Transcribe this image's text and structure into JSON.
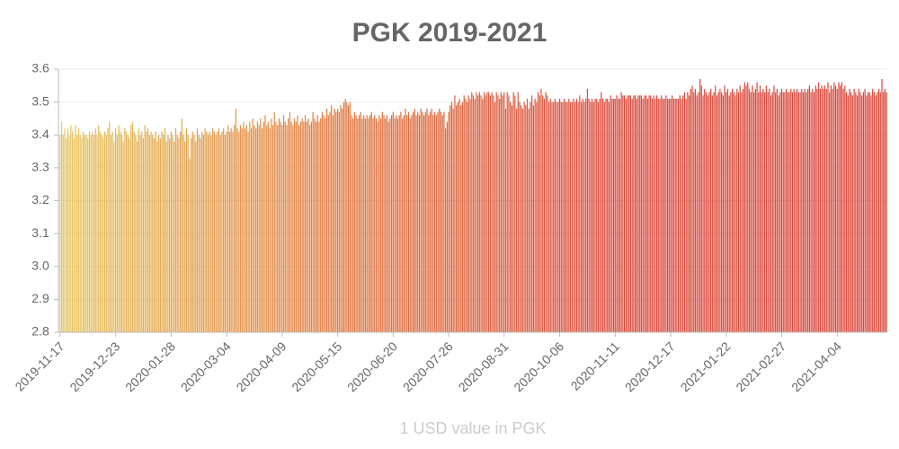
{
  "chart_data": {
    "type": "bar",
    "title": "PGK 2019-2021",
    "x_label": "1 USD value in PGK",
    "categories": [
      "2019-11-17",
      null,
      null,
      null,
      null,
      null,
      null,
      null,
      null,
      null,
      null,
      null,
      null,
      null,
      null,
      null,
      null,
      null,
      null,
      null,
      null,
      null,
      null,
      null,
      null,
      null,
      null,
      null,
      null,
      null,
      null,
      null,
      null,
      null,
      null,
      null,
      "2019-12-23",
      null,
      null,
      null,
      null,
      null,
      null,
      null,
      null,
      null,
      null,
      null,
      null,
      null,
      null,
      null,
      null,
      null,
      null,
      null,
      null,
      null,
      null,
      null,
      null,
      null,
      null,
      null,
      null,
      null,
      null,
      null,
      null,
      null,
      null,
      null,
      "2020-01-28",
      null,
      null,
      null,
      null,
      null,
      null,
      null,
      null,
      null,
      null,
      null,
      null,
      null,
      null,
      null,
      null,
      null,
      null,
      null,
      null,
      null,
      null,
      null,
      null,
      null,
      null,
      null,
      null,
      null,
      null,
      null,
      null,
      null,
      null,
      null,
      "2020-03-04",
      null,
      null,
      null,
      null,
      null,
      null,
      null,
      null,
      null,
      null,
      null,
      null,
      null,
      null,
      null,
      null,
      null,
      null,
      null,
      null,
      null,
      null,
      null,
      null,
      null,
      null,
      null,
      null,
      null,
      null,
      null,
      null,
      null,
      null,
      null,
      "2020-04-09",
      null,
      null,
      null,
      null,
      null,
      null,
      null,
      null,
      null,
      null,
      null,
      null,
      null,
      null,
      null,
      null,
      null,
      null,
      null,
      null,
      null,
      null,
      null,
      null,
      null,
      null,
      null,
      null,
      null,
      null,
      null,
      null,
      null,
      null,
      null,
      "2020-05-15",
      null,
      null,
      null,
      null,
      null,
      null,
      null,
      null,
      null,
      null,
      null,
      null,
      null,
      null,
      null,
      null,
      null,
      null,
      null,
      null,
      null,
      null,
      null,
      null,
      null,
      null,
      null,
      null,
      null,
      null,
      null,
      null,
      null,
      null,
      null,
      "2020-06-20",
      null,
      null,
      null,
      null,
      null,
      null,
      null,
      null,
      null,
      null,
      null,
      null,
      null,
      null,
      null,
      null,
      null,
      null,
      null,
      null,
      null,
      null,
      null,
      null,
      null,
      null,
      null,
      null,
      null,
      null,
      null,
      null,
      null,
      null,
      null,
      "2020-07-26",
      null,
      null,
      null,
      null,
      null,
      null,
      null,
      null,
      null,
      null,
      null,
      null,
      null,
      null,
      null,
      null,
      null,
      null,
      null,
      null,
      null,
      null,
      null,
      null,
      null,
      null,
      null,
      null,
      null,
      null,
      null,
      null,
      null,
      null,
      null,
      "2020-08-31",
      null,
      null,
      null,
      null,
      null,
      null,
      null,
      null,
      null,
      null,
      null,
      null,
      null,
      null,
      null,
      null,
      null,
      null,
      null,
      null,
      null,
      null,
      null,
      null,
      null,
      null,
      null,
      null,
      null,
      null,
      null,
      null,
      null,
      null,
      null,
      "2020-10-06",
      null,
      null,
      null,
      null,
      null,
      null,
      null,
      null,
      null,
      null,
      null,
      null,
      null,
      null,
      null,
      null,
      null,
      null,
      null,
      null,
      null,
      null,
      null,
      null,
      null,
      null,
      null,
      null,
      null,
      null,
      null,
      null,
      null,
      null,
      null,
      "2020-11-11",
      null,
      null,
      null,
      null,
      null,
      null,
      null,
      null,
      null,
      null,
      null,
      null,
      null,
      null,
      null,
      null,
      null,
      null,
      null,
      null,
      null,
      null,
      null,
      null,
      null,
      null,
      null,
      null,
      null,
      null,
      null,
      null,
      null,
      null,
      null,
      "2020-12-17",
      null,
      null,
      null,
      null,
      null,
      null,
      null,
      null,
      null,
      null,
      null,
      null,
      null,
      null,
      null,
      null,
      null,
      null,
      null,
      null,
      null,
      null,
      null,
      null,
      null,
      null,
      null,
      null,
      null,
      null,
      null,
      null,
      null,
      null,
      null,
      "2021-01-22",
      null,
      null,
      null,
      null,
      null,
      null,
      null,
      null,
      null,
      null,
      null,
      null,
      null,
      null,
      null,
      null,
      null,
      null,
      null,
      null,
      null,
      null,
      null,
      null,
      null,
      null,
      null,
      null,
      null,
      null,
      null,
      null,
      null,
      null,
      null,
      "2021-02-27",
      null,
      null,
      null,
      null,
      null,
      null,
      null,
      null,
      null,
      null,
      null,
      null,
      null,
      null,
      null,
      null,
      null,
      null,
      null,
      null,
      null,
      null,
      null,
      null,
      null,
      null,
      null,
      null,
      null,
      null,
      null,
      null,
      null,
      null,
      null,
      "2021-04-04",
      null,
      null,
      null,
      null,
      null,
      null,
      null,
      null,
      null,
      null,
      null,
      null,
      null,
      null,
      null,
      null,
      null,
      null,
      null,
      null,
      null,
      null,
      null,
      null,
      null,
      null,
      null,
      null,
      null,
      null,
      null,
      null
    ],
    "values": [
      3.4,
      3.44,
      3.4,
      3.42,
      3.39,
      3.42,
      3.4,
      3.43,
      3.41,
      3.39,
      3.43,
      3.4,
      3.42,
      3.4,
      3.39,
      3.41,
      3.4,
      3.4,
      3.39,
      3.41,
      3.4,
      3.41,
      3.4,
      3.42,
      3.4,
      3.43,
      3.41,
      3.4,
      3.39,
      3.41,
      3.4,
      3.42,
      3.44,
      3.4,
      3.41,
      3.38,
      3.42,
      3.4,
      3.43,
      3.41,
      3.4,
      3.38,
      3.42,
      3.41,
      3.4,
      3.39,
      3.43,
      3.44,
      3.41,
      3.4,
      3.38,
      3.42,
      3.4,
      3.41,
      3.39,
      3.43,
      3.41,
      3.42,
      3.4,
      3.41,
      3.4,
      3.39,
      3.41,
      3.38,
      3.4,
      3.39,
      3.41,
      3.4,
      3.42,
      3.38,
      3.4,
      3.39,
      3.41,
      3.4,
      3.38,
      3.42,
      3.4,
      3.39,
      3.41,
      3.45,
      3.4,
      3.38,
      3.42,
      3.4,
      3.33,
      3.39,
      3.41,
      3.4,
      3.38,
      3.42,
      3.4,
      3.39,
      3.41,
      3.4,
      3.42,
      3.41,
      3.4,
      3.41,
      3.4,
      3.42,
      3.41,
      3.4,
      3.41,
      3.42,
      3.4,
      3.41,
      3.42,
      3.4,
      3.41,
      3.43,
      3.41,
      3.42,
      3.41,
      3.43,
      3.48,
      3.42,
      3.41,
      3.43,
      3.42,
      3.44,
      3.42,
      3.43,
      3.41,
      3.44,
      3.42,
      3.45,
      3.43,
      3.42,
      3.44,
      3.43,
      3.45,
      3.42,
      3.44,
      3.46,
      3.43,
      3.44,
      3.42,
      3.45,
      3.43,
      3.47,
      3.44,
      3.43,
      3.45,
      3.44,
      3.43,
      3.46,
      3.44,
      3.43,
      3.45,
      3.47,
      3.44,
      3.43,
      3.45,
      3.44,
      3.46,
      3.43,
      3.44,
      3.45,
      3.44,
      3.46,
      3.44,
      3.45,
      3.43,
      3.44,
      3.47,
      3.45,
      3.44,
      3.46,
      3.44,
      3.45,
      3.47,
      3.46,
      3.45,
      3.48,
      3.46,
      3.47,
      3.49,
      3.46,
      3.48,
      3.47,
      3.48,
      3.47,
      3.49,
      3.48,
      3.5,
      3.51,
      3.5,
      3.49,
      3.5,
      3.46,
      3.45,
      3.47,
      3.46,
      3.45,
      3.46,
      3.47,
      3.45,
      3.46,
      3.45,
      3.46,
      3.45,
      3.46,
      3.47,
      3.45,
      3.46,
      3.45,
      3.44,
      3.46,
      3.45,
      3.47,
      3.46,
      3.45,
      3.46,
      3.44,
      3.45,
      3.46,
      3.47,
      3.45,
      3.46,
      3.45,
      3.46,
      3.47,
      3.45,
      3.46,
      3.48,
      3.46,
      3.47,
      3.45,
      3.46,
      3.47,
      3.48,
      3.46,
      3.47,
      3.46,
      3.48,
      3.47,
      3.46,
      3.47,
      3.48,
      3.46,
      3.47,
      3.48,
      3.46,
      3.47,
      3.46,
      3.47,
      3.48,
      3.47,
      3.46,
      3.47,
      3.42,
      3.44,
      3.47,
      3.49,
      3.5,
      3.48,
      3.52,
      3.49,
      3.5,
      3.51,
      3.49,
      3.5,
      3.52,
      3.51,
      3.5,
      3.52,
      3.51,
      3.53,
      3.52,
      3.51,
      3.53,
      3.52,
      3.53,
      3.52,
      3.51,
      3.53,
      3.52,
      3.53,
      3.53,
      3.52,
      3.53,
      3.52,
      3.5,
      3.53,
      3.52,
      3.51,
      3.53,
      3.52,
      3.53,
      3.48,
      3.53,
      3.52,
      3.5,
      3.49,
      3.53,
      3.52,
      3.48,
      3.53,
      3.5,
      3.49,
      3.48,
      3.5,
      3.49,
      3.51,
      3.48,
      3.5,
      3.52,
      3.49,
      3.51,
      3.5,
      3.53,
      3.52,
      3.54,
      3.52,
      3.51,
      3.53,
      3.52,
      3.5,
      3.51,
      3.5,
      3.5,
      3.51,
      3.5,
      3.5,
      3.51,
      3.5,
      3.5,
      3.51,
      3.5,
      3.5,
      3.51,
      3.5,
      3.5,
      3.51,
      3.5,
      3.51,
      3.5,
      3.52,
      3.5,
      3.51,
      3.5,
      3.51,
      3.54,
      3.51,
      3.5,
      3.51,
      3.5,
      3.51,
      3.51,
      3.5,
      3.51,
      3.53,
      3.51,
      3.5,
      3.51,
      3.51,
      3.5,
      3.52,
      3.51,
      3.51,
      3.51,
      3.52,
      3.51,
      3.51,
      3.53,
      3.52,
      3.52,
      3.51,
      3.52,
      3.52,
      3.52,
      3.51,
      3.52,
      3.52,
      3.51,
      3.52,
      3.52,
      3.52,
      3.51,
      3.52,
      3.52,
      3.51,
      3.52,
      3.52,
      3.51,
      3.52,
      3.51,
      3.52,
      3.51,
      3.51,
      3.52,
      3.51,
      3.51,
      3.52,
      3.51,
      3.51,
      3.51,
      3.52,
      3.51,
      3.51,
      3.51,
      3.51,
      3.52,
      3.51,
      3.52,
      3.53,
      3.51,
      3.53,
      3.52,
      3.54,
      3.55,
      3.53,
      3.54,
      3.52,
      3.53,
      3.57,
      3.55,
      3.52,
      3.54,
      3.53,
      3.52,
      3.53,
      3.54,
      3.52,
      3.53,
      3.55,
      3.52,
      3.53,
      3.54,
      3.53,
      3.52,
      3.55,
      3.53,
      3.54,
      3.52,
      3.53,
      3.54,
      3.53,
      3.52,
      3.54,
      3.53,
      3.55,
      3.53,
      3.54,
      3.56,
      3.55,
      3.56,
      3.54,
      3.53,
      3.55,
      3.53,
      3.54,
      3.56,
      3.53,
      3.55,
      3.53,
      3.54,
      3.53,
      3.55,
      3.53,
      3.54,
      3.52,
      3.53,
      3.55,
      3.53,
      3.54,
      3.52,
      3.53,
      3.54,
      3.53,
      3.53,
      3.54,
      3.53,
      3.53,
      3.54,
      3.53,
      3.54,
      3.53,
      3.54,
      3.53,
      3.53,
      3.54,
      3.53,
      3.54,
      3.53,
      3.54,
      3.55,
      3.53,
      3.54,
      3.53,
      3.55,
      3.54,
      3.56,
      3.54,
      3.55,
      3.54,
      3.55,
      3.54,
      3.56,
      3.53,
      3.55,
      3.54,
      3.56,
      3.55,
      3.54,
      3.56,
      3.55,
      3.56,
      3.54,
      3.55,
      3.53,
      3.52,
      3.54,
      3.53,
      3.52,
      3.54,
      3.53,
      3.52,
      3.54,
      3.53,
      3.52,
      3.53,
      3.54,
      3.52,
      3.53,
      3.53,
      3.52,
      3.54,
      3.53,
      3.52,
      3.53,
      3.54,
      3.53,
      3.57,
      3.53,
      3.54,
      3.53
    ],
    "colors": [
      "#e6c65c",
      "#e07a40",
      "#da4a3c",
      "#d9473a"
    ],
    "ylim": [
      2.8,
      3.6
    ],
    "yticks": [
      2.8,
      2.9,
      {
        "value": 3,
        "label": "3.0"
      },
      3.1,
      3.2,
      3.3,
      3.4,
      3.5,
      3.6
    ],
    "grid": true
  }
}
